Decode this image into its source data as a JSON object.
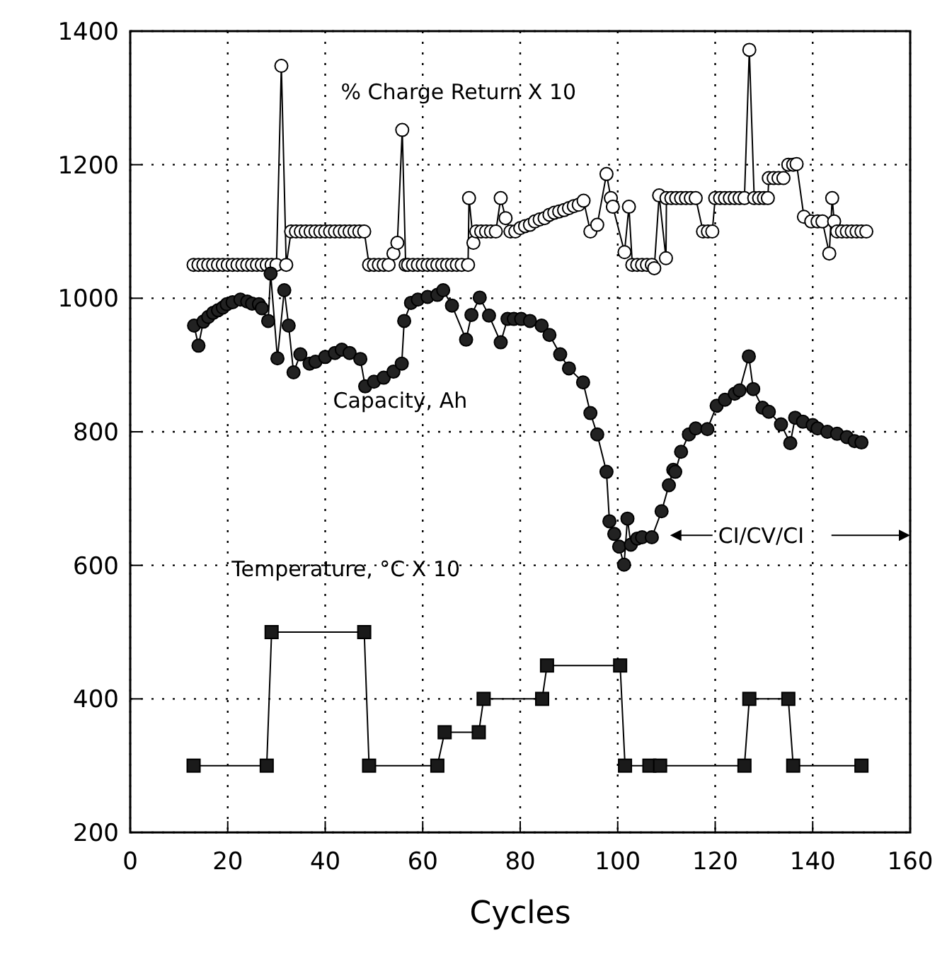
{
  "chart_data": {
    "type": "line",
    "xlabel": "Cycles",
    "xlim": [
      0,
      160
    ],
    "xticks": [
      0,
      20,
      40,
      60,
      80,
      100,
      120,
      140,
      160
    ],
    "ylim": [
      200,
      1400
    ],
    "yticks": [
      200,
      400,
      600,
      800,
      1000,
      1200,
      1400
    ],
    "grid": true,
    "line_style": "solid",
    "annotations": [
      {
        "text": "CI/CV/CI",
        "x": 109,
        "y": 645
      }
    ],
    "series": [
      {
        "name": "% Charge Return X 10",
        "color": "#ffffff",
        "marker": "circle",
        "x": [
          13,
          14,
          15,
          16,
          17,
          18,
          19,
          20,
          21,
          22,
          23,
          24,
          25,
          26,
          27,
          28,
          29,
          30,
          31,
          32,
          33,
          34,
          35,
          36,
          37,
          38,
          39,
          40,
          41,
          42,
          43,
          44,
          45,
          46,
          47,
          48,
          49,
          50,
          51,
          52,
          53,
          54,
          54.8,
          55.8,
          56.5,
          57,
          58,
          59,
          60,
          61,
          62,
          63,
          64,
          65,
          66,
          67,
          68,
          69.3,
          69.5,
          70.4,
          71,
          72,
          73,
          74,
          75,
          76,
          77,
          78,
          79,
          80,
          81,
          82,
          83,
          84,
          85,
          86,
          87,
          88,
          89,
          90,
          91,
          92,
          93,
          94.4,
          95.8,
          97.7,
          98.6,
          99,
          101.4,
          102.3,
          103,
          104,
          105,
          106,
          107,
          107.5,
          108.5,
          109.9,
          110,
          111,
          112,
          113,
          114,
          115,
          116,
          117.5,
          118.5,
          119.4,
          120,
          121,
          122,
          123,
          124,
          125,
          126,
          127,
          128,
          129,
          130,
          130.8,
          131,
          132,
          133,
          134,
          135,
          136,
          136.7,
          138.2,
          139.7,
          141,
          142,
          143.4,
          144,
          144.4,
          145,
          146,
          147,
          148,
          149,
          150,
          151
        ],
        "values": [
          1050,
          1050,
          1050,
          1050,
          1050,
          1050,
          1050,
          1050,
          1050,
          1050,
          1050,
          1050,
          1050,
          1050,
          1050,
          1050,
          1050,
          1050,
          1348,
          1050,
          1100,
          1100,
          1100,
          1100,
          1100,
          1100,
          1100,
          1100,
          1100,
          1100,
          1100,
          1100,
          1100,
          1100,
          1100,
          1100,
          1050,
          1050,
          1050,
          1050,
          1050,
          1067,
          1083,
          1252,
          1050,
          1050,
          1050,
          1050,
          1050,
          1050,
          1050,
          1050,
          1050,
          1050,
          1050,
          1050,
          1050,
          1050,
          1150,
          1083,
          1100,
          1100,
          1100,
          1100,
          1100,
          1150,
          1120,
          1100,
          1100,
          1105,
          1108,
          1110,
          1115,
          1118,
          1120,
          1125,
          1128,
          1130,
          1132,
          1135,
          1138,
          1140,
          1146,
          1100,
          1110,
          1186,
          1150,
          1137,
          1069,
          1137,
          1050,
          1050,
          1050,
          1050,
          1050,
          1045,
          1154,
          1060,
          1150,
          1150,
          1150,
          1150,
          1150,
          1150,
          1150,
          1100,
          1100,
          1100,
          1150,
          1150,
          1150,
          1150,
          1150,
          1150,
          1150,
          1372,
          1150,
          1150,
          1150,
          1150,
          1180,
          1180,
          1180,
          1180,
          1200,
          1200,
          1201,
          1122,
          1115,
          1115,
          1115,
          1067,
          1150,
          1115,
          1100,
          1100,
          1100,
          1100,
          1100,
          1100,
          1100
        ]
      },
      {
        "name": "Capacity, Ah",
        "color": "#222222",
        "marker": "circle",
        "x": [
          13.1,
          14,
          15,
          16,
          17,
          18,
          19,
          19.8,
          21,
          22.6,
          24,
          25,
          26.4,
          27,
          28.3,
          28.8,
          30.2,
          31.6,
          32.5,
          33.5,
          34.9,
          36.8,
          38,
          40,
          42,
          43.4,
          45,
          47.2,
          48.2,
          50,
          52,
          54,
          55.7,
          56.2,
          57.6,
          59,
          61,
          63,
          64.2,
          66,
          68.9,
          70,
          71.7,
          73.6,
          76,
          77.4,
          78.7,
          80.2,
          82,
          84.4,
          86,
          88.2,
          90,
          92.9,
          94.4,
          95.8,
          97.7,
          98.3,
          99.3,
          100.3,
          101.3,
          102,
          102.7,
          104,
          105,
          107,
          109,
          110.5,
          111.4,
          111.8,
          113,
          114.6,
          116,
          118.4,
          120.3,
          122,
          124,
          125,
          126.9,
          127.8,
          129.7,
          131,
          133.5,
          135.4,
          136.4,
          138,
          140,
          141,
          143,
          145,
          147,
          148.6,
          150
        ],
        "values": [
          959,
          929,
          965,
          972,
          978,
          982,
          986,
          991,
          994,
          998,
          995,
          992,
          991,
          985,
          966,
          1037,
          910,
          1012,
          959,
          889,
          916,
          902,
          905,
          912,
          918,
          923,
          918,
          909,
          868,
          875,
          881,
          890,
          902,
          966,
          993,
          998,
          1002,
          1005,
          1012,
          989,
          938,
          975,
          1001,
          974,
          934,
          969,
          969,
          969,
          966,
          959,
          945,
          916,
          895,
          874,
          828,
          796,
          740,
          666,
          647,
          628,
          601,
          670,
          631,
          640,
          642,
          642,
          681,
          720,
          743,
          740,
          770,
          796,
          805,
          804,
          839,
          848,
          857,
          862,
          913,
          864,
          836,
          830,
          811,
          783,
          821,
          815,
          810,
          805,
          800,
          797,
          792,
          786,
          784
        ]
      },
      {
        "name": "Temperature, °C X 10",
        "color": "#1a1a1a",
        "marker": "square",
        "x": [
          13,
          28,
          29,
          48,
          49,
          63,
          64.5,
          71.5,
          72.5,
          84.5,
          85.5,
          100.5,
          101.5,
          106.5,
          108.7,
          126,
          127,
          135,
          136,
          150
        ],
        "values": [
          300,
          300,
          500,
          500,
          300,
          300,
          350,
          350,
          400,
          400,
          450,
          450,
          300,
          300,
          300,
          300,
          400,
          400,
          300,
          300
        ]
      }
    ]
  }
}
